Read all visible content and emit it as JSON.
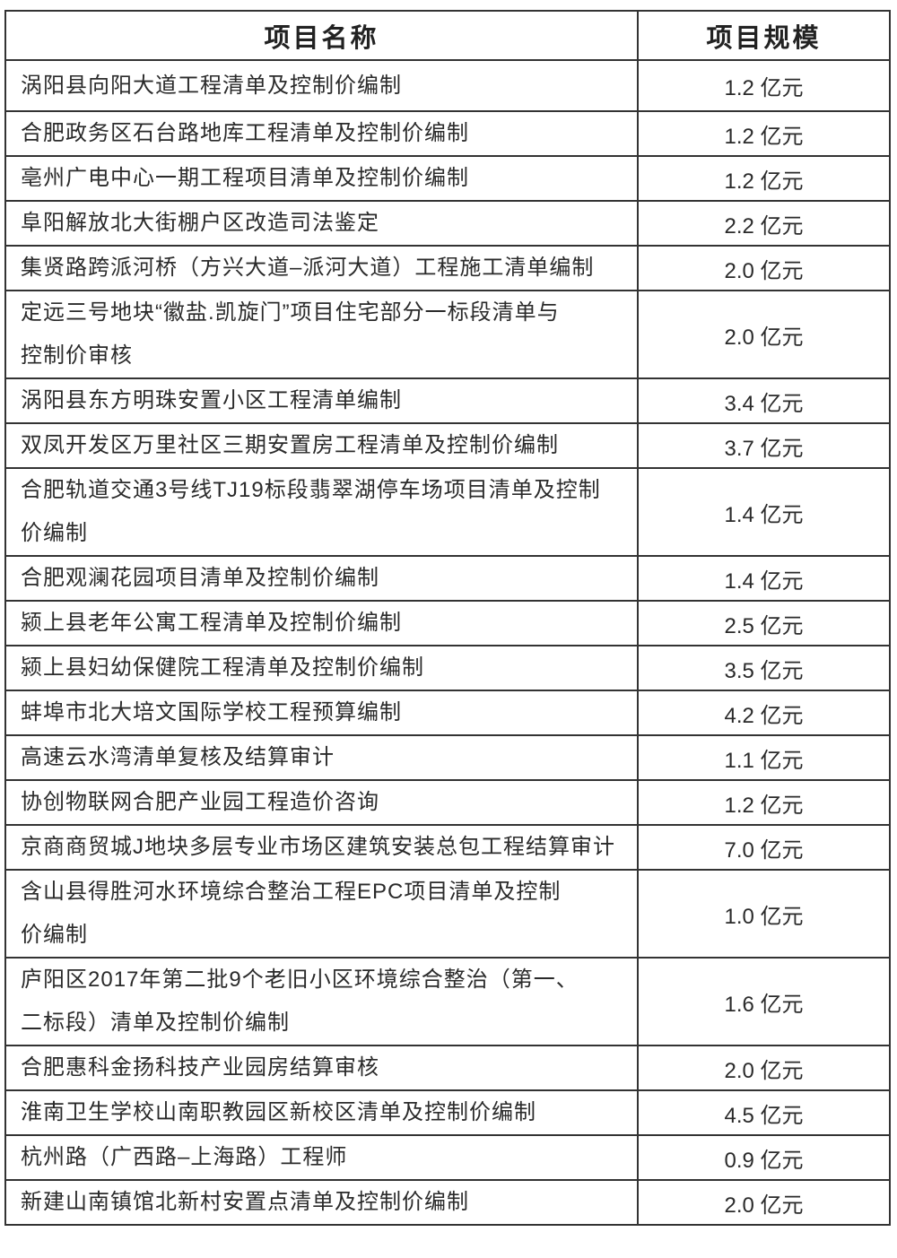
{
  "table": {
    "headers": [
      "项目名称",
      "项目规模"
    ],
    "rows": [
      {
        "name": [
          "涡阳县向阳大道工程清单及控制价编制"
        ],
        "scale": "1.2 亿元"
      },
      {
        "name": [
          "合肥政务区石台路地库工程清单及控制价编制"
        ],
        "scale": "1.2 亿元"
      },
      {
        "name": [
          "亳州广电中心一期工程项目清单及控制价编制"
        ],
        "scale": "1.2 亿元"
      },
      {
        "name": [
          "阜阳解放北大街棚户区改造司法鉴定"
        ],
        "scale": "2.2 亿元"
      },
      {
        "name": [
          "集贤路跨派河桥（方兴大道–派河大道）工程施工清单编制"
        ],
        "scale": "2.0 亿元"
      },
      {
        "name": [
          "定远三号地块“徽盐.凯旋门”项目住宅部分一标段清单与",
          "控制价审核"
        ],
        "scale": "2.0 亿元"
      },
      {
        "name": [
          "涡阳县东方明珠安置小区工程清单编制"
        ],
        "scale": "3.4 亿元"
      },
      {
        "name": [
          "双凤开发区万里社区三期安置房工程清单及控制价编制"
        ],
        "scale": "3.7 亿元"
      },
      {
        "name": [
          "合肥轨道交通3号线TJ19标段翡翠湖停车场项目清单及控制",
          "价编制"
        ],
        "scale": "1.4 亿元"
      },
      {
        "name": [
          "合肥观澜花园项目清单及控制价编制"
        ],
        "scale": "1.4 亿元"
      },
      {
        "name": [
          "颍上县老年公寓工程清单及控制价编制"
        ],
        "scale": "2.5 亿元"
      },
      {
        "name": [
          "颍上县妇幼保健院工程清单及控制价编制"
        ],
        "scale": "3.5 亿元"
      },
      {
        "name": [
          "蚌埠市北大培文国际学校工程预算编制"
        ],
        "scale": "4.2 亿元"
      },
      {
        "name": [
          "高速云水湾清单复核及结算审计"
        ],
        "scale": "1.1 亿元"
      },
      {
        "name": [
          "协创物联网合肥产业园工程造价咨询"
        ],
        "scale": "1.2 亿元"
      },
      {
        "name": [
          "京商商贸城J地块多层专业市场区建筑安装总包工程结算审计"
        ],
        "scale": "7.0 亿元"
      },
      {
        "name": [
          "含山县得胜河水环境综合整治工程EPC项目清单及控制",
          "价编制"
        ],
        "scale": "1.0 亿元"
      },
      {
        "name": [
          "庐阳区2017年第二批9个老旧小区环境综合整治（第一、",
          "二标段）清单及控制价编制"
        ],
        "scale": "1.6 亿元"
      },
      {
        "name": [
          "合肥惠科金扬科技产业园房结算审核"
        ],
        "scale": "2.0 亿元"
      },
      {
        "name": [
          "淮南卫生学校山南职教园区新校区清单及控制价编制"
        ],
        "scale": "4.5 亿元"
      },
      {
        "name": [
          "杭州路（广西路–上海路）工程师"
        ],
        "scale": "0.9 亿元"
      },
      {
        "name": [
          "新建山南镇馆北新村安置点清单及控制价编制"
        ],
        "scale": "2.0 亿元"
      }
    ]
  }
}
